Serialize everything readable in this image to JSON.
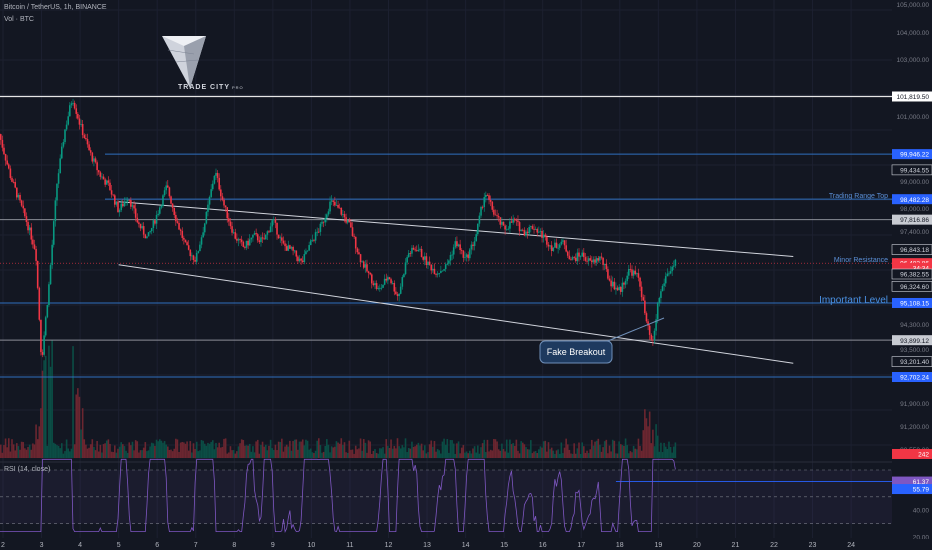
{
  "header": {
    "symbol": "Bitcoin / TetherUS, 1h, BINANCE",
    "volume": "Vol · BTC",
    "rsi": "RSI (14, close)"
  },
  "logo": {
    "text": "TRADE CITY",
    "sub": "PRO"
  },
  "price_axis": {
    "ticks": [
      "105,000.00",
      "104,000.00",
      "103,000.00",
      "101,000.00",
      "99,000.00",
      "98,000.00",
      "97,400.00",
      "94,300.00",
      "93,500.00",
      "91,900.00",
      "91,200.00",
      "90,550.00"
    ],
    "labels": [
      {
        "text": "101,819.50",
        "value": 101819.5,
        "style": "white"
      },
      {
        "text": "99,946.22",
        "value": 99946.22,
        "style": "blue"
      },
      {
        "text": "99,434.55",
        "value": 99434.55,
        "style": "outline"
      },
      {
        "text": "98,482.28",
        "value": 98482.28,
        "style": "blue"
      },
      {
        "text": "97,816.86",
        "value": 97816.86,
        "style": "gray"
      },
      {
        "text": "96,843.18",
        "value": 96843.18,
        "style": "outline"
      },
      {
        "text": "96,402.86",
        "value": 96402.86,
        "style": "red"
      },
      {
        "text": "34:34",
        "value": 96250,
        "style": "red"
      },
      {
        "text": "96,382.55",
        "value": 96050,
        "style": "outline"
      },
      {
        "text": "96,324.60",
        "value": 95650,
        "style": "outline"
      },
      {
        "text": "95,108.15",
        "value": 95108.15,
        "style": "blue"
      },
      {
        "text": "93,899.12",
        "value": 93899.12,
        "style": "gray"
      },
      {
        "text": "93,201.40",
        "value": 93201.4,
        "style": "outline"
      },
      {
        "text": "92,702.24",
        "value": 92702.24,
        "style": "blue"
      },
      {
        "text": "242",
        "value": 90200,
        "style": "red"
      }
    ]
  },
  "rsi_axis": {
    "labels": [
      "61.37",
      "55.79"
    ],
    "ticks": [
      "40.00",
      "20.00"
    ]
  },
  "time_axis": [
    "2",
    "3",
    "4",
    "5",
    "6",
    "7",
    "8",
    "9",
    "10",
    "11",
    "12",
    "13",
    "14",
    "15",
    "16",
    "17",
    "18",
    "19",
    "20",
    "21",
    "22",
    "23",
    "24"
  ],
  "annotations": {
    "trading_range_top": "Trading Range Top",
    "minor_resistance": "Minor Resistance",
    "important_level": "Important Level",
    "fake_breakout": "Fake Breakout"
  },
  "chart_data": {
    "type": "candlestick",
    "symbol": "Bitcoin / TetherUS",
    "timeframe": "1h",
    "exchange": "BINANCE",
    "horizontal_levels": [
      101819.5,
      99946.22,
      98482.28,
      97816.86,
      95108.15,
      93899.12,
      92702.24
    ],
    "last_price": 96402.86,
    "channel": {
      "upper": {
        "from": {
          "day": 5.0,
          "price": 98400
        },
        "to": {
          "day": 22.5,
          "price": 96620
        }
      },
      "lower": {
        "from": {
          "day": 5.0,
          "price": 96350
        },
        "to": {
          "day": 22.5,
          "price": 93150
        }
      }
    },
    "price_path": [
      [
        1.9,
        100600
      ],
      [
        2.2,
        99200
      ],
      [
        2.6,
        97800
      ],
      [
        2.85,
        96800
      ],
      [
        3.0,
        93200
      ],
      [
        3.2,
        95800
      ],
      [
        3.4,
        99000
      ],
      [
        3.6,
        100700
      ],
      [
        3.8,
        101800
      ],
      [
        4.0,
        100900
      ],
      [
        4.25,
        100000
      ],
      [
        4.5,
        99300
      ],
      [
        4.75,
        98900
      ],
      [
        5.0,
        98100
      ],
      [
        5.25,
        98600
      ],
      [
        5.5,
        97700
      ],
      [
        5.75,
        97200
      ],
      [
        6.0,
        98000
      ],
      [
        6.25,
        98900
      ],
      [
        6.5,
        97800
      ],
      [
        6.75,
        96900
      ],
      [
        7.0,
        96500
      ],
      [
        7.25,
        97800
      ],
      [
        7.5,
        99400
      ],
      [
        7.75,
        98200
      ],
      [
        8.0,
        97300
      ],
      [
        8.25,
        96900
      ],
      [
        8.5,
        97300
      ],
      [
        8.75,
        97100
      ],
      [
        9.0,
        97800
      ],
      [
        9.25,
        97000
      ],
      [
        9.5,
        96800
      ],
      [
        9.75,
        96400
      ],
      [
        10.0,
        97100
      ],
      [
        10.25,
        97600
      ],
      [
        10.5,
        98400
      ],
      [
        10.75,
        98100
      ],
      [
        11.0,
        97600
      ],
      [
        11.25,
        96600
      ],
      [
        11.5,
        96000
      ],
      [
        11.75,
        95500
      ],
      [
        12.0,
        96000
      ],
      [
        12.25,
        95300
      ],
      [
        12.5,
        96700
      ],
      [
        12.75,
        96900
      ],
      [
        13.0,
        96400
      ],
      [
        13.25,
        96100
      ],
      [
        13.5,
        96300
      ],
      [
        13.75,
        97100
      ],
      [
        14.0,
        96500
      ],
      [
        14.25,
        97200
      ],
      [
        14.5,
        98700
      ],
      [
        14.75,
        98000
      ],
      [
        15.0,
        97500
      ],
      [
        15.25,
        97800
      ],
      [
        15.5,
        97400
      ],
      [
        15.75,
        97600
      ],
      [
        16.0,
        97300
      ],
      [
        16.25,
        96900
      ],
      [
        16.5,
        97100
      ],
      [
        16.75,
        96500
      ],
      [
        17.0,
        96700
      ],
      [
        17.25,
        96400
      ],
      [
        17.5,
        96600
      ],
      [
        17.75,
        95800
      ],
      [
        18.0,
        95500
      ],
      [
        18.25,
        96200
      ],
      [
        18.5,
        95900
      ],
      [
        18.7,
        94400
      ],
      [
        18.85,
        93700
      ],
      [
        19.0,
        95200
      ],
      [
        19.2,
        96000
      ],
      [
        19.45,
        96400
      ]
    ]
  }
}
